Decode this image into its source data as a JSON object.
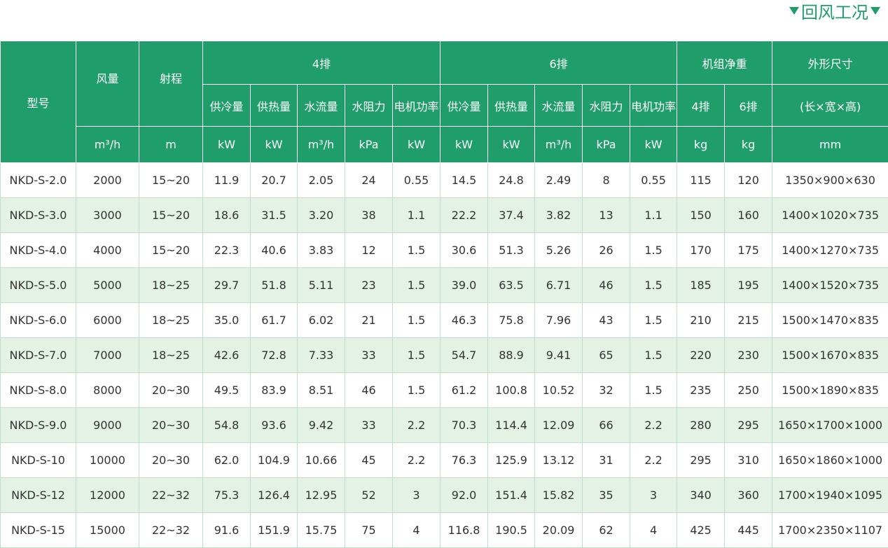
{
  "header": {
    "title": "回风工况"
  },
  "table": {
    "head": {
      "row1": [
        "型号",
        "风量",
        "射程",
        "4排",
        "6排",
        "机组净重",
        "外形尺寸"
      ],
      "row2": [
        "供冷量",
        "供热量",
        "水流量",
        "水阻力",
        "电机功率",
        "供冷量",
        "供热量",
        "水流量",
        "水阻力",
        "电机功率",
        "4排",
        "6排",
        "(长×宽×高)"
      ],
      "units": [
        "m³/h",
        "m",
        "kW",
        "kW",
        "m³/h",
        "kPa",
        "kW",
        "kW",
        "kW",
        "m³/h",
        "kPa",
        "kW",
        "kg",
        "kg",
        "mm"
      ]
    },
    "rows": [
      [
        "NKD-S-2.0",
        "2000",
        "15~20",
        "11.9",
        "20.7",
        "2.05",
        "24",
        "0.55",
        "14.5",
        "24.8",
        "2.49",
        "8",
        "0.55",
        "115",
        "120",
        "1350×900×630"
      ],
      [
        "NKD-S-3.0",
        "3000",
        "15~20",
        "18.6",
        "31.5",
        "3.20",
        "38",
        "1.1",
        "22.2",
        "37.4",
        "3.82",
        "13",
        "1.1",
        "150",
        "160",
        "1400×1020×735"
      ],
      [
        "NKD-S-4.0",
        "4000",
        "15~20",
        "22.3",
        "40.6",
        "3.83",
        "12",
        "1.5",
        "30.6",
        "51.3",
        "5.26",
        "26",
        "1.5",
        "170",
        "175",
        "1400×1270×735"
      ],
      [
        "NKD-S-5.0",
        "5000",
        "18~25",
        "29.7",
        "51.8",
        "5.11",
        "23",
        "1.5",
        "39.0",
        "63.5",
        "6.71",
        "46",
        "1.5",
        "185",
        "195",
        "1400×1520×735"
      ],
      [
        "NKD-S-6.0",
        "6000",
        "18~25",
        "35.0",
        "61.7",
        "6.02",
        "21",
        "1.5",
        "46.3",
        "75.8",
        "7.96",
        "43",
        "1.5",
        "210",
        "215",
        "1500×1470×835"
      ],
      [
        "NKD-S-7.0",
        "7000",
        "18~25",
        "42.6",
        "72.8",
        "7.33",
        "33",
        "1.5",
        "54.7",
        "88.9",
        "9.41",
        "65",
        "1.5",
        "220",
        "230",
        "1500×1670×835"
      ],
      [
        "NKD-S-8.0",
        "8000",
        "20~30",
        "49.5",
        "83.9",
        "8.51",
        "46",
        "1.5",
        "61.2",
        "100.8",
        "10.52",
        "32",
        "1.5",
        "235",
        "250",
        "1500×1890×835"
      ],
      [
        "NKD-S-9.0",
        "9000",
        "20~30",
        "54.8",
        "93.6",
        "9.42",
        "33",
        "2.2",
        "70.3",
        "114.4",
        "12.09",
        "66",
        "2.2",
        "280",
        "295",
        "1650×1700×1000"
      ],
      [
        "NKD-S-10",
        "10000",
        "20~30",
        "62.0",
        "104.9",
        "10.66",
        "45",
        "2.2",
        "76.3",
        "125.9",
        "13.12",
        "31",
        "2.2",
        "295",
        "310",
        "1650×1860×1000"
      ],
      [
        "NKD-S-12",
        "12000",
        "22~32",
        "75.3",
        "126.4",
        "12.95",
        "52",
        "3",
        "92.0",
        "151.4",
        "15.82",
        "35",
        "3",
        "340",
        "360",
        "1700×1940×1095"
      ],
      [
        "NKD-S-15",
        "15000",
        "22~32",
        "91.6",
        "151.9",
        "15.75",
        "75",
        "4",
        "116.8",
        "190.5",
        "20.09",
        "62",
        "4",
        "425",
        "445",
        "1700×2350×1107"
      ]
    ]
  }
}
